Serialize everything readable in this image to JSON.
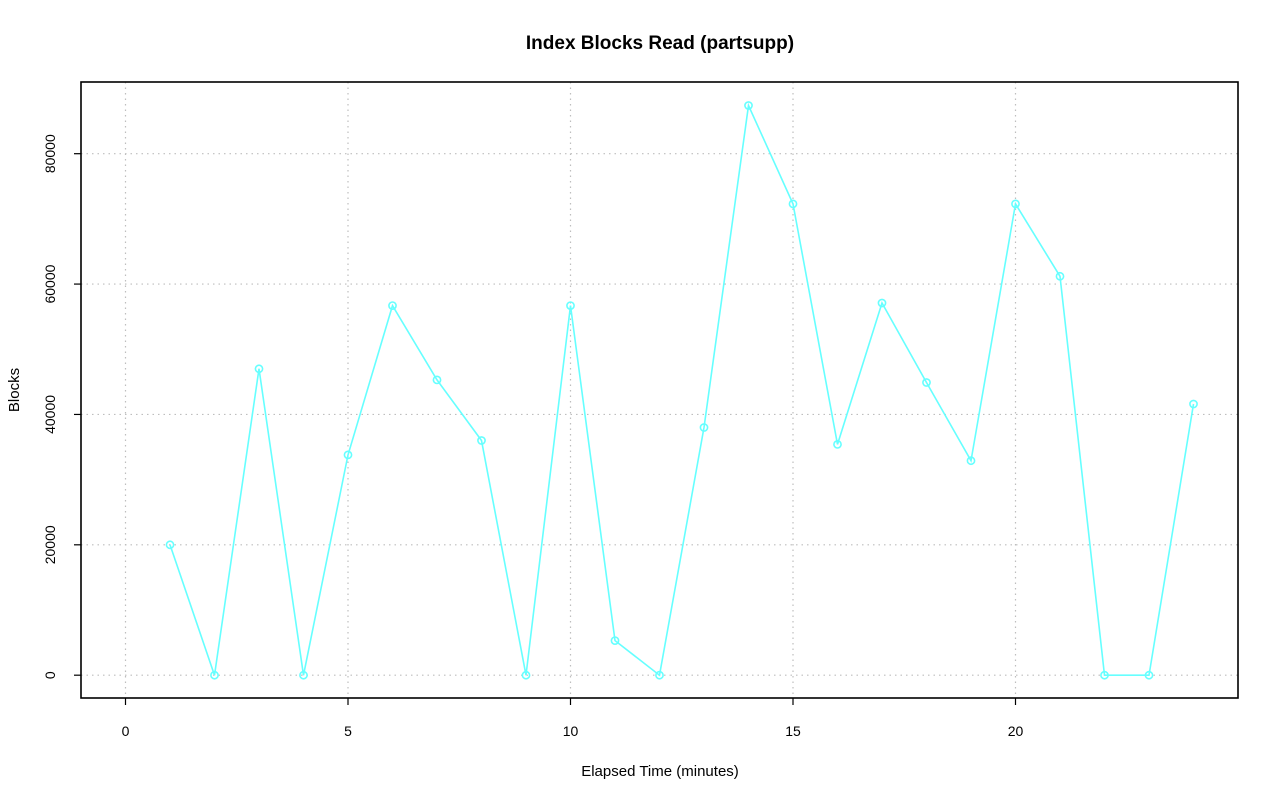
{
  "chart_data": {
    "type": "line",
    "title": "Index Blocks Read (partsupp)",
    "xlabel": "Elapsed Time (minutes)",
    "ylabel": "Blocks",
    "xlim": [
      -1,
      25
    ],
    "ylim": [
      -3500,
      91000
    ],
    "x_ticks": [
      0,
      5,
      10,
      15,
      20
    ],
    "y_ticks": [
      0,
      20000,
      40000,
      60000,
      80000
    ],
    "grid": true,
    "colors": {
      "series": "#66ffff",
      "grid": "#bebebe",
      "frame": "#000000"
    },
    "x": [
      1,
      2,
      3,
      4,
      5,
      6,
      7,
      8,
      9,
      10,
      11,
      12,
      13,
      14,
      15,
      16,
      17,
      18,
      19,
      20,
      21,
      22,
      23,
      24
    ],
    "values": [
      20000,
      0,
      47000,
      0,
      33800,
      56700,
      45300,
      36000,
      0,
      56700,
      5300,
      0,
      38000,
      87400,
      72300,
      35400,
      57100,
      44900,
      32900,
      72300,
      61200,
      0,
      0,
      41600
    ]
  }
}
